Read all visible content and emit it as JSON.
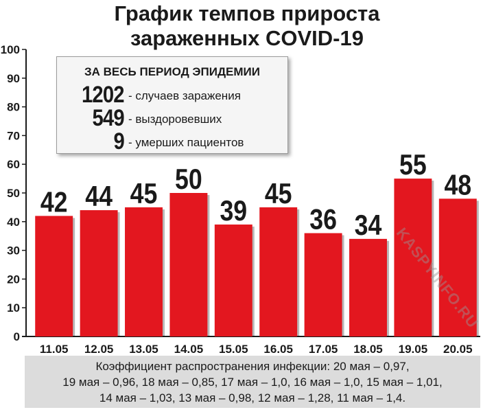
{
  "chart_data": {
    "type": "bar",
    "title": "График темпов прироста\nзараженных COVID-19",
    "categories": [
      "11.05",
      "12.05",
      "13.05",
      "14.05",
      "15.05",
      "16.05",
      "17.05",
      "18.05",
      "19.05",
      "20.05"
    ],
    "values": [
      42,
      44,
      45,
      50,
      39,
      45,
      36,
      34,
      55,
      48
    ],
    "ylim": [
      0,
      100
    ],
    "yticks": [
      0,
      10,
      20,
      30,
      40,
      50,
      60,
      70,
      80,
      90,
      100
    ],
    "bar_color": "#e3171f",
    "grid": false
  },
  "summary": {
    "title": "ЗА ВЕСЬ ПЕРИОД ЭПИДЕМИИ",
    "stats": [
      {
        "value": "1202",
        "label": "- случаев заражения"
      },
      {
        "value": "549",
        "label": "- выздоровевших"
      },
      {
        "value": "9",
        "label": "- умерших пациентов"
      }
    ]
  },
  "footer": {
    "text": "Коэффициент распространения инфекции: 20 мая – 0,97,\n19 мая – 0,96, 18 мая – 0,85, 17 мая – 1,0, 16 мая – 1,0, 15 мая – 1,01,\n14 мая – 1,03, 13 мая – 0,98, 12 мая – 1,28, 11 мая – 1,4."
  },
  "watermark": "KASPYINFO.RU"
}
